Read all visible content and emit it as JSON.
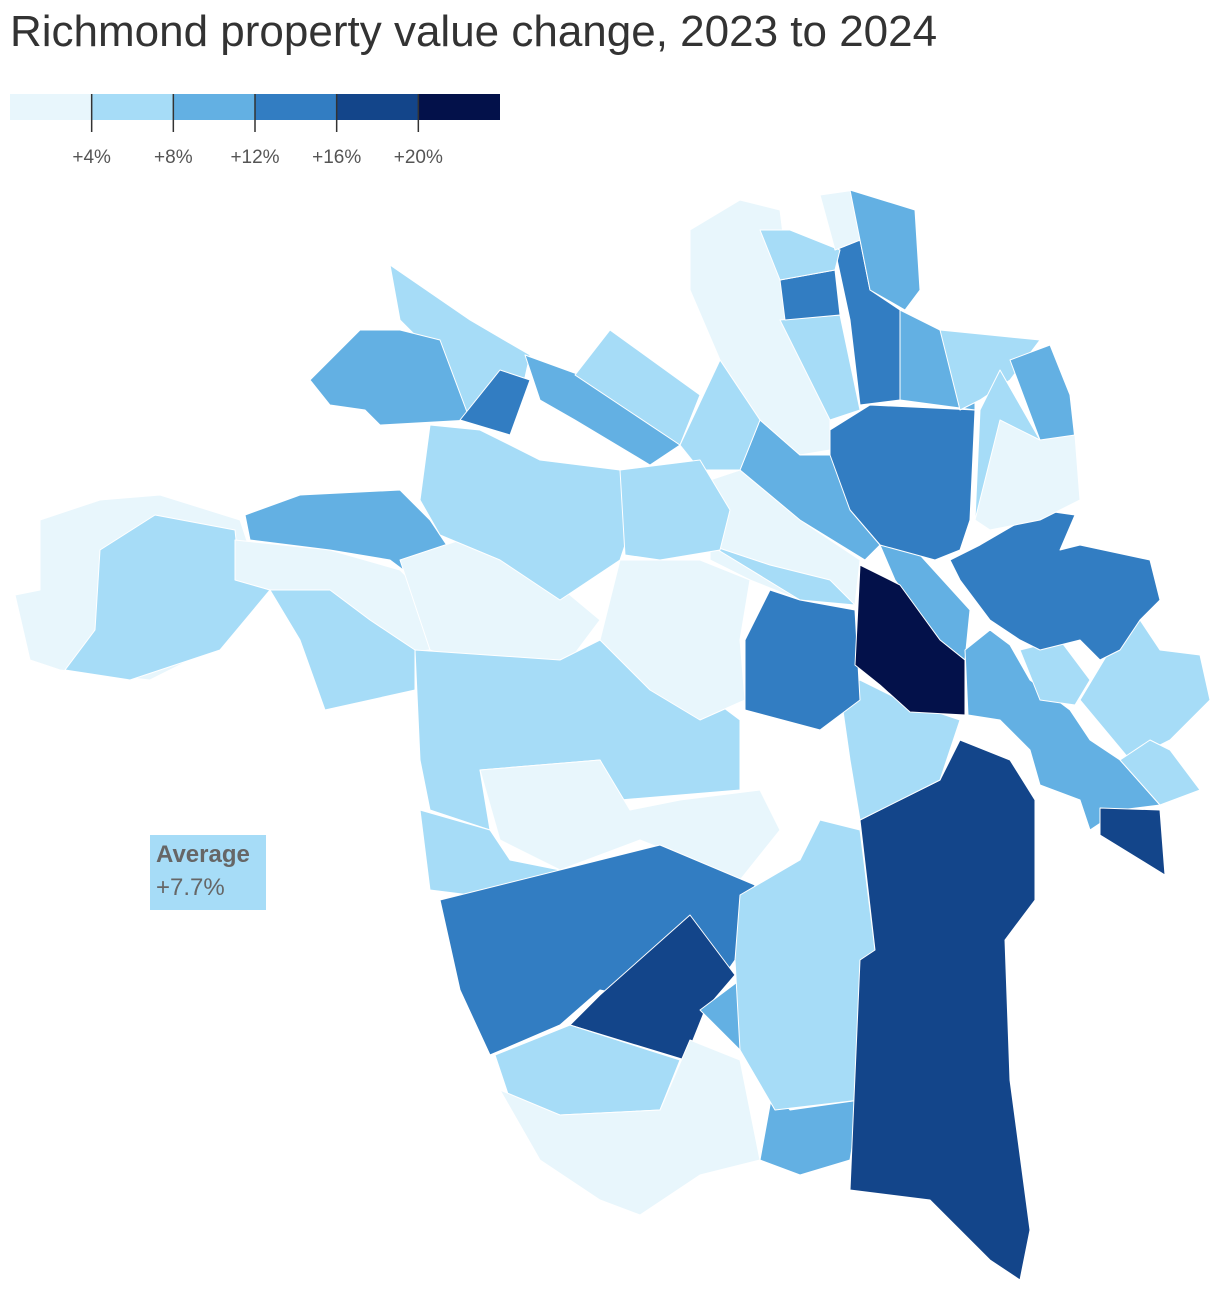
{
  "chart_data": {
    "type": "choropleth",
    "title": "Richmond property value change, 2023 to 2024",
    "legend": {
      "lim": [
        0,
        24
      ],
      "ticks": [
        {
          "value": 4,
          "label": "+4%"
        },
        {
          "value": 8,
          "label": "+8%"
        },
        {
          "value": 12,
          "label": "+12%"
        },
        {
          "value": 16,
          "label": "+16%"
        },
        {
          "value": 20,
          "label": "+20%"
        }
      ],
      "colors": [
        "#e8f6fc",
        "#a6dcf7",
        "#63b0e3",
        "#327dc2",
        "#13458a",
        "#03114a"
      ]
    },
    "annotation": {
      "label": "Average",
      "value": "+7.7%",
      "color": "#a6dcf7"
    }
  }
}
